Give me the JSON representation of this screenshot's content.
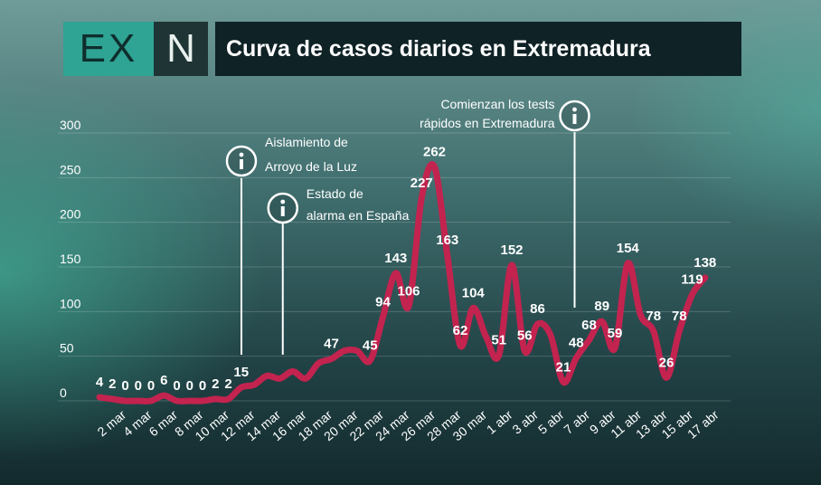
{
  "title": "Curva de casos diarios en Extremadura",
  "logo": {
    "left": "EX",
    "right": "N"
  },
  "colors": {
    "line": "#c3234f",
    "accent": "#2fa394",
    "text": "#ffffff"
  },
  "chart_data": {
    "type": "line",
    "title": "Curva de casos diarios en Extremadura",
    "xlabel": "",
    "ylabel": "",
    "ylim": [
      0,
      300
    ],
    "yticks": [
      0,
      50,
      100,
      150,
      200,
      250,
      300
    ],
    "grid": true,
    "x": [
      "1 mar",
      "2 mar",
      "3 mar",
      "4 mar",
      "5 mar",
      "6 mar",
      "7 mar",
      "8 mar",
      "9 mar",
      "10 mar",
      "11 mar",
      "12 mar",
      "13 mar",
      "14 mar",
      "15 mar",
      "16 mar",
      "17 mar",
      "18 mar",
      "19 mar",
      "20 mar",
      "21 mar",
      "22 mar",
      "23 mar",
      "24 mar",
      "25 mar",
      "26 mar",
      "27 mar",
      "28 mar",
      "29 mar",
      "30 mar",
      "31 mar",
      "1 abr",
      "2 abr",
      "3 abr",
      "4 abr",
      "5 abr",
      "6 abr",
      "7 abr",
      "8 abr",
      "9 abr",
      "10 abr",
      "11 abr",
      "12 abr",
      "13 abr",
      "14 abr",
      "15 abr",
      "16 abr",
      "17 abr"
    ],
    "xtick_labels": [
      "2 mar",
      "4 mar",
      "6 mar",
      "8 mar",
      "10 mar",
      "12 mar",
      "14 mar",
      "16 mar",
      "18 mar",
      "20 mar",
      "22 mar",
      "24 mar",
      "26 mar",
      "28 mar",
      "30 mar",
      "1 abr",
      "3 abr",
      "5 abr",
      "7 abr",
      "9 abr",
      "11 abr",
      "13 abr",
      "15 abr",
      "17 abr"
    ],
    "values": [
      4,
      2,
      0,
      0,
      0,
      6,
      0,
      0,
      0,
      2,
      2,
      15,
      18,
      28,
      25,
      33,
      25,
      42,
      47,
      56,
      56,
      45,
      94,
      143,
      106,
      227,
      262,
      163,
      62,
      104,
      72,
      51,
      152,
      56,
      86,
      74,
      21,
      48,
      68,
      89,
      59,
      154,
      96,
      78,
      26,
      78,
      119,
      138
    ],
    "data_labels": [
      {
        "i": 0,
        "text": "4"
      },
      {
        "i": 1,
        "text": "2"
      },
      {
        "i": 2,
        "text": "0"
      },
      {
        "i": 3,
        "text": "0"
      },
      {
        "i": 4,
        "text": "0"
      },
      {
        "i": 5,
        "text": "6"
      },
      {
        "i": 6,
        "text": "0"
      },
      {
        "i": 7,
        "text": "0"
      },
      {
        "i": 8,
        "text": "0"
      },
      {
        "i": 9,
        "text": "2"
      },
      {
        "i": 10,
        "text": "2"
      },
      {
        "i": 11,
        "text": "15"
      },
      {
        "i": 18,
        "text": "47"
      },
      {
        "i": 21,
        "text": "45"
      },
      {
        "i": 22,
        "text": "94"
      },
      {
        "i": 23,
        "text": "143"
      },
      {
        "i": 24,
        "text": "106"
      },
      {
        "i": 25,
        "text": "227"
      },
      {
        "i": 26,
        "text": "262"
      },
      {
        "i": 27,
        "text": "163"
      },
      {
        "i": 28,
        "text": "62"
      },
      {
        "i": 29,
        "text": "104"
      },
      {
        "i": 31,
        "text": "51"
      },
      {
        "i": 32,
        "text": "152"
      },
      {
        "i": 33,
        "text": "56"
      },
      {
        "i": 34,
        "text": "86"
      },
      {
        "i": 36,
        "text": "21"
      },
      {
        "i": 37,
        "text": "48"
      },
      {
        "i": 38,
        "text": "68"
      },
      {
        "i": 39,
        "text": "89"
      },
      {
        "i": 40,
        "text": "59"
      },
      {
        "i": 41,
        "text": "154"
      },
      {
        "i": 43,
        "text": "78"
      },
      {
        "i": 44,
        "text": "26"
      },
      {
        "i": 45,
        "text": "78"
      },
      {
        "i": 46,
        "text": "119"
      },
      {
        "i": 47,
        "text": "138"
      }
    ],
    "annotations": [
      {
        "name": "aislamiento",
        "i": 12,
        "lines": [
          "Aislamiento de",
          "Arroyo de la Luz"
        ],
        "icon": "info-icon"
      },
      {
        "name": "estado-alarma",
        "i": 15,
        "lines": [
          "Estado de",
          "alarma en España"
        ],
        "icon": "info-icon"
      },
      {
        "name": "tests",
        "i": 38,
        "lines": [
          "Comienzan los tests",
          "rápidos en Extremadura"
        ],
        "icon": "info-icon"
      }
    ]
  }
}
